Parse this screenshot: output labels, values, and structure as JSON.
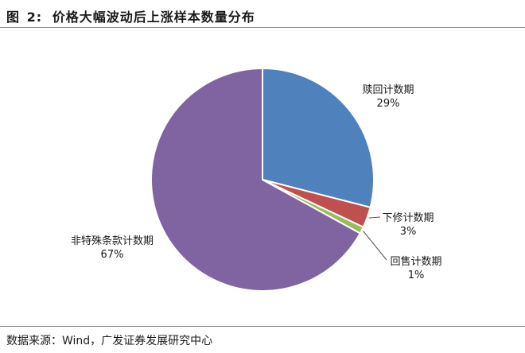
{
  "figure": {
    "label": "图",
    "number": "2:",
    "title": "价格大幅波动后上涨样本数量分布"
  },
  "chart_data": {
    "type": "pie",
    "title": "价格大幅波动后上涨样本数量分布",
    "slices": [
      {
        "label": "赎回计数期",
        "value": 29,
        "value_label": "29%",
        "color": "#4f81bd"
      },
      {
        "label": "下修计数期",
        "value": 3,
        "value_label": "3%",
        "color": "#c0504d"
      },
      {
        "label": "回售计数期",
        "value": 1,
        "value_label": "1%",
        "color": "#9bbb59"
      },
      {
        "label": "非特殊条款计数期",
        "value": 67,
        "value_label": "67%",
        "color": "#8064a2"
      }
    ],
    "start_angle": "12 o'clock",
    "direction": "clockwise",
    "legend": "none"
  },
  "source": {
    "text": "数据来源：Wind，广发证券发展研究中心"
  }
}
